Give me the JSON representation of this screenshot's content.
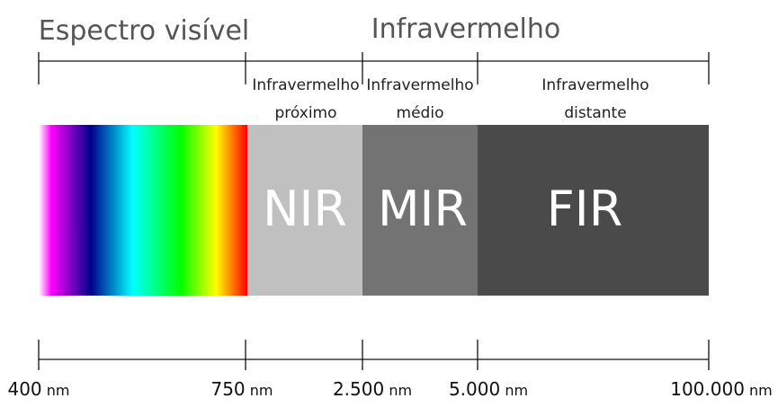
{
  "headers": {
    "visible": "Espectro visível",
    "infrared": "Infravermelho"
  },
  "regions": [
    {
      "id": "nir",
      "label_line1": "Infravermelho",
      "label_line2": "próximo",
      "abbr": "NIR",
      "color": "#c0c0c0"
    },
    {
      "id": "mir",
      "label_line1": "Infravermelho",
      "label_line2": "médio",
      "abbr": "MIR",
      "color": "#737373"
    },
    {
      "id": "fir",
      "label_line1": "Infravermelho",
      "label_line2": "distante",
      "abbr": "FIR",
      "color": "#4a4a4a"
    }
  ],
  "visible_spectrum_colors": [
    "#ffffff",
    "#ff00ff",
    "#00008b",
    "#00ffff",
    "#00ff00",
    "#ffff00",
    "#ff0000"
  ],
  "ticks": [
    {
      "value": "400",
      "unit": "nm"
    },
    {
      "value": "750",
      "unit": "nm"
    },
    {
      "value": "2.500",
      "unit": "nm"
    },
    {
      "value": "5.000",
      "unit": "nm"
    },
    {
      "value": "100.000",
      "unit": "nm"
    }
  ]
}
